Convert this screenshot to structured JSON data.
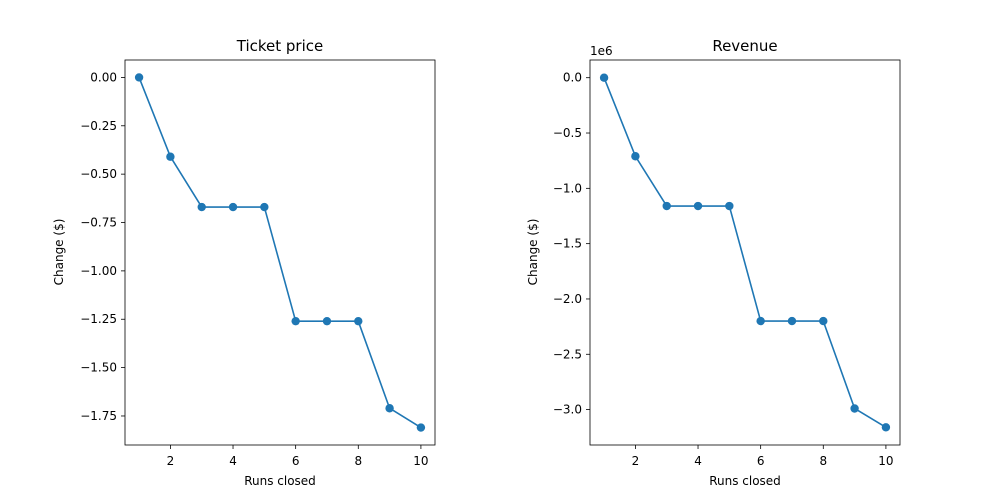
{
  "chart_data": [
    {
      "type": "line",
      "title": "Ticket price",
      "xlabel": "Runs closed",
      "ylabel": "Change ($)",
      "x": [
        1,
        2,
        3,
        4,
        5,
        6,
        7,
        8,
        9,
        10
      ],
      "series": [
        {
          "values": [
            0.0,
            -0.41,
            -0.67,
            -0.67,
            -0.67,
            -1.26,
            -1.26,
            -1.26,
            -1.71,
            -1.81
          ],
          "color": "#1f77b4",
          "marker": "circle"
        }
      ],
      "xlim": [
        0.55,
        10.45
      ],
      "ylim": [
        -1.9,
        0.09
      ],
      "xticks": [
        2,
        4,
        6,
        8,
        10
      ],
      "xtick_labels": [
        "2",
        "4",
        "6",
        "8",
        "10"
      ],
      "yticks": [
        0.0,
        -0.25,
        -0.5,
        -0.75,
        -1.0,
        -1.25,
        -1.5,
        -1.75
      ],
      "ytick_labels": [
        "0.00",
        "−0.25",
        "−0.50",
        "−0.75",
        "−1.00",
        "−1.25",
        "−1.50",
        "−1.75"
      ],
      "offset_text": "",
      "grid": false,
      "legend": "none"
    },
    {
      "type": "line",
      "title": "Revenue",
      "xlabel": "Runs closed",
      "ylabel": "Change ($)",
      "x": [
        1,
        2,
        3,
        4,
        5,
        6,
        7,
        8,
        9,
        10
      ],
      "series": [
        {
          "values": [
            0,
            -710000,
            -1160000,
            -1160000,
            -1160000,
            -2200000,
            -2200000,
            -2200000,
            -2990000,
            -3160000
          ],
          "color": "#1f77b4",
          "marker": "circle"
        }
      ],
      "xlim": [
        0.55,
        10.45
      ],
      "ylim": [
        -3.32,
        0.16
      ],
      "xticks": [
        2,
        4,
        6,
        8,
        10
      ],
      "xtick_labels": [
        "2",
        "4",
        "6",
        "8",
        "10"
      ],
      "yticks": [
        0.0,
        -0.5,
        -1.0,
        -1.5,
        -2.0,
        -2.5,
        -3.0
      ],
      "ytick_labels": [
        "0.0",
        "−0.5",
        "−1.0",
        "−1.5",
        "−2.0",
        "−2.5",
        "−3.0"
      ],
      "offset_text": "1e6",
      "y_scale_factor": 1000000,
      "grid": false,
      "legend": "none"
    }
  ]
}
